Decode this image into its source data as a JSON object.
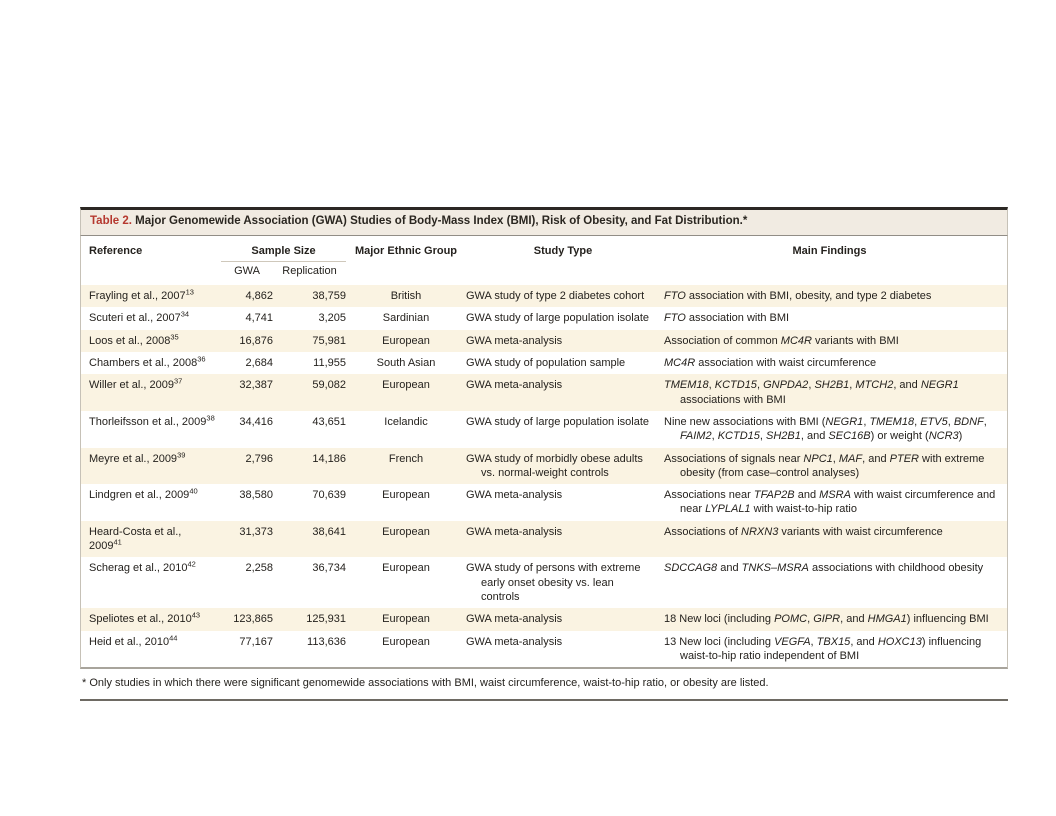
{
  "table": {
    "label": "Table 2.",
    "title": "Major Genomewide Association (GWA) Studies of Body-Mass Index (BMI), Risk of Obesity, and Fat Distribution.*",
    "columns": {
      "reference": "Reference",
      "sample_size": "Sample Size",
      "gwa": "GWA",
      "replication": "Replication",
      "ethnic_group": "Major Ethnic Group",
      "study_type": "Study Type",
      "main_findings": "Main Findings"
    },
    "rows": [
      {
        "reference": "Frayling et al., 2007",
        "ref_sup": "13",
        "gwa": "4,862",
        "replication": "38,759",
        "ethnic_group": "British",
        "study_type": "GWA study of type 2 diabetes cohort",
        "findings": [
          {
            "t": "FTO",
            "i": true
          },
          {
            "t": " association with BMI, obesity, and type 2 diabetes"
          }
        ]
      },
      {
        "reference": "Scuteri et al., 2007",
        "ref_sup": "34",
        "gwa": "4,741",
        "replication": "3,205",
        "ethnic_group": "Sardinian",
        "study_type": "GWA study of large population isolate",
        "findings": [
          {
            "t": "FTO",
            "i": true
          },
          {
            "t": " association with BMI"
          }
        ]
      },
      {
        "reference": "Loos et al., 2008",
        "ref_sup": "35",
        "gwa": "16,876",
        "replication": "75,981",
        "ethnic_group": "European",
        "study_type": "GWA meta-analysis",
        "findings": [
          {
            "t": "Association of common "
          },
          {
            "t": "MC4R",
            "i": true
          },
          {
            "t": " variants with BMI"
          }
        ]
      },
      {
        "reference": "Chambers et al., 2008",
        "ref_sup": "36",
        "gwa": "2,684",
        "replication": "11,955",
        "ethnic_group": "South Asian",
        "study_type": "GWA study of population sample",
        "findings": [
          {
            "t": "MC4R",
            "i": true
          },
          {
            "t": " association with waist circumference"
          }
        ]
      },
      {
        "reference": "Willer et al., 2009",
        "ref_sup": "37",
        "gwa": "32,387",
        "replication": "59,082",
        "ethnic_group": "European",
        "study_type": "GWA meta-analysis",
        "findings": [
          {
            "t": "TMEM18",
            "i": true
          },
          {
            "t": ", "
          },
          {
            "t": "KCTD15",
            "i": true
          },
          {
            "t": ", "
          },
          {
            "t": "GNPDA2",
            "i": true
          },
          {
            "t": ", "
          },
          {
            "t": "SH2B1",
            "i": true
          },
          {
            "t": ", "
          },
          {
            "t": "MTCH2",
            "i": true
          },
          {
            "t": ", and "
          },
          {
            "t": "NEGR1",
            "i": true
          },
          {
            "t": " associations with BMI"
          }
        ]
      },
      {
        "reference": "Thorleifsson et al., 2009",
        "ref_sup": "38",
        "gwa": "34,416",
        "replication": "43,651",
        "ethnic_group": "Icelandic",
        "study_type": "GWA study of large population isolate",
        "findings": [
          {
            "t": "Nine new associations with BMI ("
          },
          {
            "t": "NEGR1",
            "i": true
          },
          {
            "t": ", "
          },
          {
            "t": "TMEM18",
            "i": true
          },
          {
            "t": ", "
          },
          {
            "t": "ETV5",
            "i": true
          },
          {
            "t": ", "
          },
          {
            "t": "BDNF",
            "i": true
          },
          {
            "t": ", "
          },
          {
            "t": "FAIM2",
            "i": true
          },
          {
            "t": ", "
          },
          {
            "t": "KCTD15",
            "i": true
          },
          {
            "t": ", "
          },
          {
            "t": "SH2B1",
            "i": true
          },
          {
            "t": ", and "
          },
          {
            "t": "SEC16B",
            "i": true
          },
          {
            "t": ") or weight ("
          },
          {
            "t": "NCR3",
            "i": true
          },
          {
            "t": ")"
          }
        ]
      },
      {
        "reference": "Meyre et al., 2009",
        "ref_sup": "39",
        "gwa": "2,796",
        "replication": "14,186",
        "ethnic_group": "French",
        "study_type": "GWA study of morbidly obese adults vs. normal-weight controls",
        "findings": [
          {
            "t": "Associations of signals near "
          },
          {
            "t": "NPC1",
            "i": true
          },
          {
            "t": ", "
          },
          {
            "t": "MAF",
            "i": true
          },
          {
            "t": ", and "
          },
          {
            "t": "PTER",
            "i": true
          },
          {
            "t": " with extreme obesity (from case–control analyses)"
          }
        ]
      },
      {
        "reference": "Lindgren et al., 2009",
        "ref_sup": "40",
        "gwa": "38,580",
        "replication": "70,639",
        "ethnic_group": "European",
        "study_type": "GWA meta-analysis",
        "findings": [
          {
            "t": "Associations near "
          },
          {
            "t": "TFAP2B",
            "i": true
          },
          {
            "t": " and "
          },
          {
            "t": "MSRA",
            "i": true
          },
          {
            "t": " with waist circumference and near "
          },
          {
            "t": "LYPLAL1",
            "i": true
          },
          {
            "t": " with waist-to-hip ratio"
          }
        ]
      },
      {
        "reference": "Heard-Costa et al., 2009",
        "ref_sup": "41",
        "gwa": "31,373",
        "replication": "38,641",
        "ethnic_group": "European",
        "study_type": "GWA meta-analysis",
        "findings": [
          {
            "t": "Associations of "
          },
          {
            "t": "NRXN3",
            "i": true
          },
          {
            "t": " variants with waist circumference"
          }
        ]
      },
      {
        "reference": "Scherag et al., 2010",
        "ref_sup": "42",
        "gwa": "2,258",
        "replication": "36,734",
        "ethnic_group": "European",
        "study_type": "GWA study of persons with extreme early onset obesity vs. lean controls",
        "findings": [
          {
            "t": "SDCCAG8",
            "i": true
          },
          {
            "t": " and "
          },
          {
            "t": "TNKS–MSRA",
            "i": true
          },
          {
            "t": " associations with childhood obesity"
          }
        ]
      },
      {
        "reference": "Speliotes et al., 2010",
        "ref_sup": "43",
        "gwa": "123,865",
        "replication": "125,931",
        "ethnic_group": "European",
        "study_type": "GWA meta-analysis",
        "findings": [
          {
            "t": "18 New loci (including "
          },
          {
            "t": "POMC",
            "i": true
          },
          {
            "t": ", "
          },
          {
            "t": "GIPR",
            "i": true
          },
          {
            "t": ", and "
          },
          {
            "t": "HMGA1",
            "i": true
          },
          {
            "t": ") influencing BMI"
          }
        ]
      },
      {
        "reference": "Heid et al., 2010",
        "ref_sup": "44",
        "gwa": "77,167",
        "replication": "113,636",
        "ethnic_group": "European",
        "study_type": "GWA meta-analysis",
        "findings": [
          {
            "t": "13 New loci (including "
          },
          {
            "t": "VEGFA",
            "i": true
          },
          {
            "t": ", "
          },
          {
            "t": "TBX15",
            "i": true
          },
          {
            "t": ", and "
          },
          {
            "t": "HOXC13",
            "i": true
          },
          {
            "t": ") influencing waist-to-hip ratio independent of BMI"
          }
        ]
      }
    ],
    "footnote": "* Only studies in which there were significant genomewide associations with BMI, waist circumference, waist-to-hip ratio, or obesity are listed.",
    "colors": {
      "accent_red": "#b5382f",
      "row_shade": "#faf3e2",
      "titlebar_bg": "#f1ebe2",
      "text": "#25221e"
    }
  }
}
